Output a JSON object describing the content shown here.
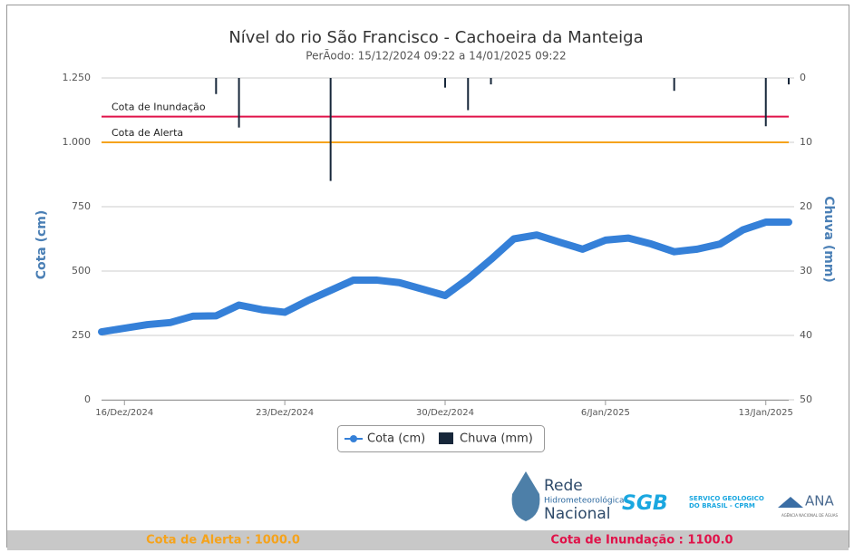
{
  "chart_data": {
    "type": "line",
    "title": "Nível do rio São Francisco - Cachoeira da Manteiga",
    "subtitle": "PerÃodo: 15/12/2024 09:22 a 14/01/2025 09:22",
    "y_label": "Cota (cm)",
    "y2_label": "Chuva (mm)",
    "xlim": [
      "2024-12-15",
      "2025-01-14"
    ],
    "xticks": [
      {
        "value": "2024-12-16",
        "label": "16/Dez/2024"
      },
      {
        "value": "2024-12-23",
        "label": "23/Dez/2024"
      },
      {
        "value": "2024-12-30",
        "label": "30/Dez/2024"
      },
      {
        "value": "2025-01-06",
        "label": "6/Jan/2025"
      },
      {
        "value": "2025-01-13",
        "label": "13/Jan/2025"
      }
    ],
    "ylim": [
      0,
      1250
    ],
    "yticks": [
      0,
      250,
      500,
      750,
      {
        "value": 1000,
        "label": "1.000"
      },
      {
        "value": 1250,
        "label": "1.250"
      }
    ],
    "y2lim": [
      0,
      50
    ],
    "y2ticks": [
      0,
      10,
      20,
      30,
      40,
      50
    ],
    "y2_reversed": true,
    "grid": true,
    "thresholds": [
      {
        "label": "Cota de Inundação",
        "value": 1100,
        "color": "#e0134a"
      },
      {
        "label": "Cota de Alerta",
        "value": 1000,
        "color": "#f5a31c"
      }
    ],
    "series": [
      {
        "name": "Cota (cm)",
        "color": "#3580d8",
        "x": [
          "2024-12-15",
          "2024-12-16",
          "2024-12-17",
          "2024-12-18",
          "2024-12-19",
          "2024-12-20",
          "2024-12-21",
          "2024-12-22",
          "2024-12-23",
          "2024-12-24",
          "2024-12-25",
          "2024-12-26",
          "2024-12-27",
          "2024-12-28",
          "2024-12-29",
          "2024-12-30",
          "2024-12-31",
          "2025-01-01",
          "2025-01-02",
          "2025-01-03",
          "2025-01-04",
          "2025-01-05",
          "2025-01-06",
          "2025-01-07",
          "2025-01-08",
          "2025-01-09",
          "2025-01-10",
          "2025-01-11",
          "2025-01-12",
          "2025-01-13",
          "2025-01-14"
        ],
        "values": [
          264,
          278,
          292,
          300,
          325,
          326,
          368,
          350,
          340,
          385,
          425,
          465,
          465,
          455,
          430,
          405,
          470,
          545,
          625,
          640,
          612,
          585,
          620,
          628,
          605,
          575,
          585,
          605,
          660,
          690,
          690
        ]
      },
      {
        "name": "Chuva (mm)",
        "color": "#17273a",
        "axis": "y2",
        "x": [
          "2024-12-20",
          "2024-12-21",
          "2024-12-25",
          "2024-12-30",
          "2024-12-31",
          "2025-01-01",
          "2025-01-09",
          "2025-01-13",
          "2025-01-14"
        ],
        "values": [
          2.5,
          7.7,
          16,
          1.5,
          5,
          1,
          2,
          7.5,
          1
        ]
      }
    ]
  },
  "footer": {
    "alert": "Cota de Alerta : 1000.0",
    "flood": "Cota de Inundação : 1100.0"
  },
  "logos": {
    "rede": "Rede",
    "rede_sub": "Hidrometeorológica",
    "rede_nac": "Nacional",
    "sgb": "SGB",
    "sgb_text": "SERVIÇO GEOLÓGICO DO BRASIL - CPRM",
    "ana": "ANA",
    "ana_sub": "AGÊNCIA NACIONAL DE ÁGUAS"
  }
}
